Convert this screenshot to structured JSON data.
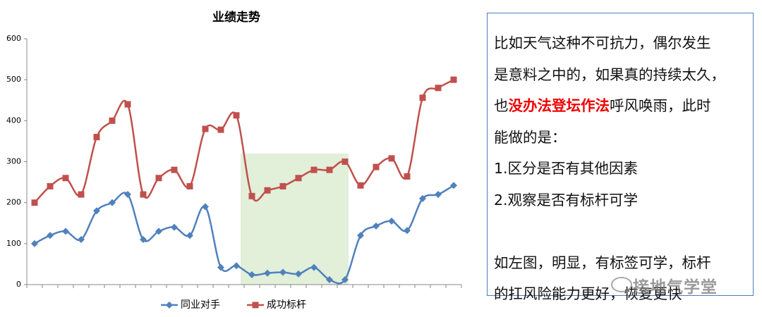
{
  "chart_data": {
    "type": "line",
    "title": "业绩走势",
    "categories": [
      null,
      null,
      null,
      null,
      null,
      null,
      null,
      null,
      null,
      null,
      null,
      null,
      null,
      null,
      null,
      null,
      null,
      null,
      null,
      null,
      null,
      null,
      null,
      null,
      null,
      null,
      null,
      null
    ],
    "series": [
      {
        "name": "同业对手",
        "color": "#4f81bd",
        "marker": "diamond",
        "values": [
          100,
          120,
          130,
          110,
          180,
          200,
          220,
          110,
          130,
          140,
          120,
          190,
          42,
          46,
          24,
          28,
          30,
          26,
          42,
          12,
          12,
          120,
          143,
          155,
          132,
          210,
          220,
          242
        ]
      },
      {
        "name": "成功标杆",
        "color": "#c0504d",
        "marker": "square",
        "values": [
          200,
          240,
          260,
          220,
          360,
          400,
          440,
          220,
          260,
          280,
          240,
          380,
          378,
          413,
          216,
          230,
          240,
          260,
          280,
          280,
          300,
          242,
          287,
          308,
          264,
          456,
          480,
          500
        ]
      }
    ],
    "ylim": [
      0,
      600
    ],
    "yticks": [
      0,
      100,
      200,
      300,
      400,
      500,
      600
    ],
    "grid": false,
    "smooth": true,
    "legend": "bottom"
  },
  "text_box": {
    "lines": [
      [
        {
          "text": "比如天气这种不可抗力，偶尔发生"
        }
      ],
      [
        {
          "text": "是意料之中的，如果真的持续太久，"
        }
      ],
      [
        {
          "text": "也"
        },
        {
          "text": "没办法登坛作法",
          "emphasis": true
        },
        {
          "text": "呼风唤雨，此时"
        }
      ],
      [
        {
          "text": "能做的是："
        }
      ],
      [
        {
          "text": "1.区分是否有其他因素"
        }
      ],
      [
        {
          "text": "2.观察是否有标杆可学"
        }
      ],
      [],
      [
        {
          "text": "如左图，明显，有标签可学，标杆"
        }
      ],
      [
        {
          "text": "的扛风险能力更好，恢复更快"
        }
      ]
    ]
  },
  "watermark": "接地气学堂"
}
